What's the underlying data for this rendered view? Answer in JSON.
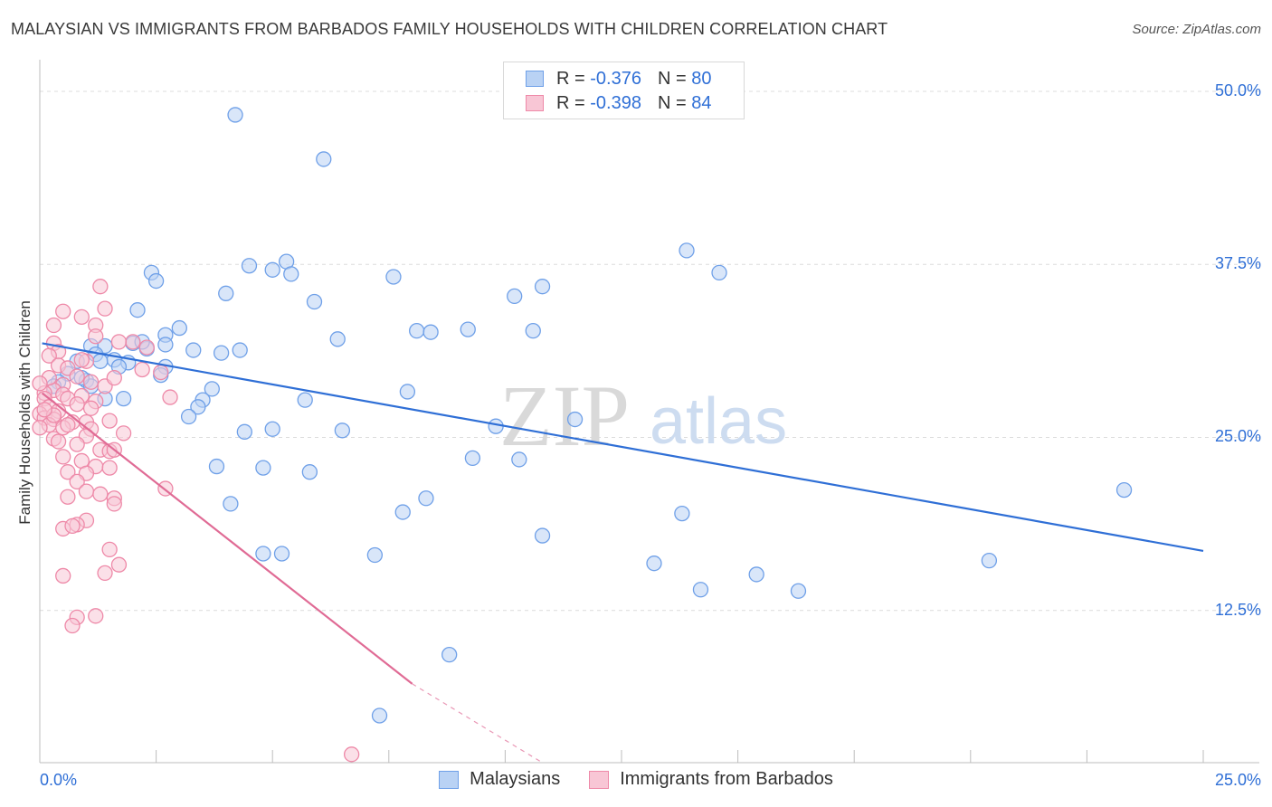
{
  "chart_data": {
    "type": "scatter",
    "title": "MALAYSIAN VS IMMIGRANTS FROM BARBADOS FAMILY HOUSEHOLDS WITH CHILDREN CORRELATION CHART",
    "source": "Source: ZipAtlas.com",
    "xlabel": "",
    "ylabel": "Family Households with Children",
    "xlim": [
      0,
      25
    ],
    "ylim": [
      1.5,
      51.5
    ],
    "x_tick_labels": {
      "left": "0.0%",
      "right": "25.0%"
    },
    "y_ticks": [
      {
        "value": 12.5,
        "label": "12.5%"
      },
      {
        "value": 25.0,
        "label": "25.0%"
      },
      {
        "value": 37.5,
        "label": "37.5%"
      },
      {
        "value": 50.0,
        "label": "50.0%"
      }
    ],
    "watermark": {
      "zip": "ZIP",
      "atlas": "atlas"
    },
    "legend": [
      {
        "r_label": "R =",
        "r_value": "-0.376",
        "n_label": "N =",
        "n_value": "80"
      },
      {
        "r_label": "R =",
        "r_value": "-0.398",
        "n_label": "N =",
        "n_value": "84"
      }
    ],
    "series": [
      {
        "name": "Malaysians",
        "color": "#6fa0e8",
        "fill": "#b9d2f4",
        "line_color": "#2f6fd6",
        "trend": {
          "x0": 0.05,
          "y0": 31.8,
          "x1": 25.0,
          "y1": 16.8
        },
        "points": [
          [
            4.2,
            48.3
          ],
          [
            6.1,
            45.1
          ],
          [
            13.9,
            38.5
          ],
          [
            14.6,
            36.9
          ],
          [
            2.4,
            36.9
          ],
          [
            2.5,
            36.3
          ],
          [
            4.5,
            37.4
          ],
          [
            5.0,
            37.1
          ],
          [
            5.3,
            37.7
          ],
          [
            5.4,
            36.8
          ],
          [
            7.6,
            36.6
          ],
          [
            10.8,
            35.9
          ],
          [
            10.2,
            35.2
          ],
          [
            4.0,
            35.4
          ],
          [
            5.9,
            34.8
          ],
          [
            2.1,
            34.2
          ],
          [
            3.0,
            32.9
          ],
          [
            2.7,
            32.4
          ],
          [
            8.1,
            32.7
          ],
          [
            8.4,
            32.6
          ],
          [
            9.2,
            32.8
          ],
          [
            10.6,
            32.7
          ],
          [
            6.4,
            32.1
          ],
          [
            1.1,
            31.6
          ],
          [
            1.4,
            31.6
          ],
          [
            2.0,
            31.8
          ],
          [
            2.7,
            31.7
          ],
          [
            3.3,
            31.3
          ],
          [
            3.9,
            31.1
          ],
          [
            4.3,
            31.3
          ],
          [
            2.3,
            31.4
          ],
          [
            1.2,
            31.0
          ],
          [
            1.6,
            30.6
          ],
          [
            0.8,
            30.5
          ],
          [
            1.9,
            30.4
          ],
          [
            2.7,
            30.1
          ],
          [
            2.6,
            29.5
          ],
          [
            0.6,
            29.6
          ],
          [
            0.4,
            29.0
          ],
          [
            1.0,
            29.1
          ],
          [
            0.3,
            28.7
          ],
          [
            1.1,
            28.7
          ],
          [
            3.7,
            28.5
          ],
          [
            7.9,
            28.3
          ],
          [
            1.4,
            27.8
          ],
          [
            1.8,
            27.8
          ],
          [
            3.5,
            27.7
          ],
          [
            5.7,
            27.7
          ],
          [
            3.4,
            27.2
          ],
          [
            3.2,
            26.5
          ],
          [
            11.5,
            26.3
          ],
          [
            9.8,
            25.8
          ],
          [
            4.4,
            25.4
          ],
          [
            5.0,
            25.6
          ],
          [
            6.5,
            25.5
          ],
          [
            9.3,
            23.5
          ],
          [
            10.3,
            23.4
          ],
          [
            3.8,
            22.9
          ],
          [
            4.8,
            22.8
          ],
          [
            5.8,
            22.5
          ],
          [
            8.3,
            20.6
          ],
          [
            4.1,
            20.2
          ],
          [
            7.8,
            19.6
          ],
          [
            13.8,
            19.5
          ],
          [
            10.8,
            17.9
          ],
          [
            23.3,
            21.2
          ],
          [
            20.4,
            16.1
          ],
          [
            4.8,
            16.6
          ],
          [
            5.2,
            16.6
          ],
          [
            7.2,
            16.5
          ],
          [
            13.2,
            15.9
          ],
          [
            15.4,
            15.1
          ],
          [
            14.2,
            14.0
          ],
          [
            16.3,
            13.9
          ],
          [
            8.8,
            9.3
          ],
          [
            7.3,
            4.9
          ],
          [
            1.3,
            30.5
          ],
          [
            2.2,
            31.9
          ],
          [
            0.9,
            29.3
          ],
          [
            1.7,
            30.1
          ]
        ]
      },
      {
        "name": "Immigrants from Barbados",
        "color": "#ee89a8",
        "fill": "#f8c6d5",
        "line_color": "#e06b95",
        "trend": {
          "x0": 0.05,
          "y0": 28.2,
          "x1": 8.0,
          "y1": 7.2
        },
        "trend_dash": {
          "x0": 8.0,
          "y0": 7.2,
          "x1": 10.8,
          "y1": 1.5
        },
        "points": [
          [
            1.3,
            35.9
          ],
          [
            1.4,
            34.3
          ],
          [
            0.5,
            34.1
          ],
          [
            0.9,
            33.7
          ],
          [
            1.2,
            33.1
          ],
          [
            0.3,
            33.1
          ],
          [
            1.2,
            32.3
          ],
          [
            0.3,
            31.8
          ],
          [
            0.4,
            31.2
          ],
          [
            0.2,
            30.9
          ],
          [
            1.0,
            30.5
          ],
          [
            2.0,
            31.9
          ],
          [
            2.3,
            31.5
          ],
          [
            0.4,
            30.2
          ],
          [
            2.2,
            29.9
          ],
          [
            2.6,
            29.7
          ],
          [
            0.6,
            30.0
          ],
          [
            0.8,
            29.4
          ],
          [
            1.1,
            29.0
          ],
          [
            0.5,
            28.8
          ],
          [
            0.3,
            28.4
          ],
          [
            0.1,
            28.2
          ],
          [
            0.5,
            28.1
          ],
          [
            0.9,
            28.0
          ],
          [
            0.1,
            27.8
          ],
          [
            0.6,
            27.8
          ],
          [
            1.2,
            27.6
          ],
          [
            0.8,
            27.4
          ],
          [
            0.2,
            27.2
          ],
          [
            0.4,
            26.9
          ],
          [
            0.0,
            26.7
          ],
          [
            0.1,
            26.4
          ],
          [
            0.3,
            26.3
          ],
          [
            0.7,
            26.1
          ],
          [
            1.5,
            26.2
          ],
          [
            1.0,
            26.1
          ],
          [
            0.2,
            25.9
          ],
          [
            0.0,
            25.7
          ],
          [
            0.5,
            25.7
          ],
          [
            1.1,
            25.6
          ],
          [
            1.0,
            25.1
          ],
          [
            1.8,
            25.3
          ],
          [
            0.3,
            24.9
          ],
          [
            0.8,
            24.5
          ],
          [
            1.3,
            24.1
          ],
          [
            1.5,
            24.0
          ],
          [
            1.6,
            24.1
          ],
          [
            0.5,
            23.6
          ],
          [
            0.9,
            23.3
          ],
          [
            1.2,
            22.9
          ],
          [
            1.5,
            22.8
          ],
          [
            0.6,
            22.5
          ],
          [
            1.0,
            22.4
          ],
          [
            0.8,
            21.8
          ],
          [
            1.0,
            21.1
          ],
          [
            1.3,
            20.9
          ],
          [
            0.6,
            20.7
          ],
          [
            1.6,
            20.6
          ],
          [
            1.6,
            20.2
          ],
          [
            2.7,
            21.3
          ],
          [
            2.8,
            27.9
          ],
          [
            1.0,
            19.0
          ],
          [
            0.8,
            18.7
          ],
          [
            0.5,
            18.4
          ],
          [
            0.7,
            18.6
          ],
          [
            1.5,
            16.9
          ],
          [
            1.7,
            15.8
          ],
          [
            1.4,
            15.2
          ],
          [
            0.5,
            15.0
          ],
          [
            0.8,
            12.0
          ],
          [
            1.2,
            12.1
          ],
          [
            0.7,
            11.4
          ],
          [
            6.7,
            2.1
          ],
          [
            0.2,
            29.3
          ],
          [
            0.0,
            28.9
          ],
          [
            1.1,
            27.1
          ],
          [
            0.4,
            24.7
          ],
          [
            1.7,
            31.9
          ],
          [
            0.9,
            30.6
          ],
          [
            1.4,
            28.7
          ],
          [
            0.3,
            26.6
          ],
          [
            0.6,
            25.9
          ],
          [
            1.6,
            29.3
          ],
          [
            0.1,
            27.0
          ]
        ]
      }
    ]
  }
}
